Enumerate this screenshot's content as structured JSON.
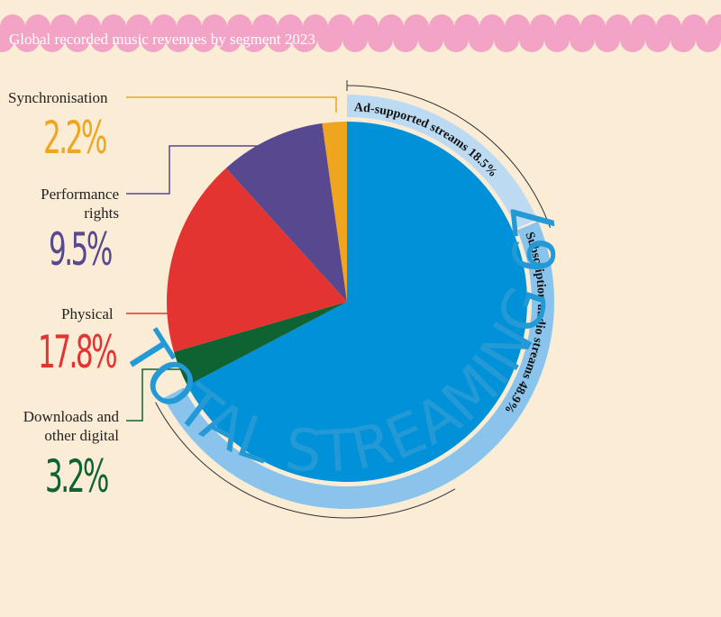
{
  "title": "Global recorded music revenues by segment 2023",
  "colors": {
    "banner": "#f2a3c6",
    "background": "#fbecd6",
    "synchronisation": "#f0a51f",
    "performance_rights": "#574890",
    "physical": "#e33431",
    "downloads": "#0f6232",
    "streaming": "#0091d9",
    "ring": "#bcdbf3",
    "total_text": "#2399d6"
  },
  "chart_data": {
    "type": "pie",
    "title": "Global recorded music revenues by segment 2023",
    "slices": [
      {
        "label": "Synchronisation",
        "value": 2.2,
        "display": "2.2%",
        "color": "#f0a51f"
      },
      {
        "label": "Performance rights",
        "value": 9.5,
        "display": "9.5%",
        "color": "#574890"
      },
      {
        "label": "Physical",
        "value": 17.8,
        "display": "17.8%",
        "color": "#e33431"
      },
      {
        "label": "Downloads and other digital",
        "value": 3.2,
        "display": "3.2%",
        "color": "#0f6232"
      },
      {
        "label": "Streaming",
        "value": 67.3,
        "display": "67.3%",
        "color": "#0091d9"
      }
    ],
    "streaming_breakdown": [
      {
        "label": "Ad-supported streams",
        "value": 18.5,
        "display": "18.5%"
      },
      {
        "label": "Subscription audio streams",
        "value": 48.9,
        "display": "48.9%"
      }
    ],
    "total_label": "TOTAL STREAMING 67.3%"
  },
  "labels": {
    "sync": {
      "line1": "Synchronisation",
      "pct": "2.2%"
    },
    "perf": {
      "line1": "Performance",
      "line2": "rights",
      "pct": "9.5%"
    },
    "phys": {
      "line1": "Physical",
      "pct": "17.8%"
    },
    "down": {
      "line1": "Downloads and",
      "line2": "other digital",
      "pct": "3.2%"
    }
  },
  "ring_labels": {
    "ad": "Ad-supported streams  18.5%",
    "sub": "Subscription audio streams  48.9%",
    "total": "TOTAL STREAMING 67.3%"
  }
}
